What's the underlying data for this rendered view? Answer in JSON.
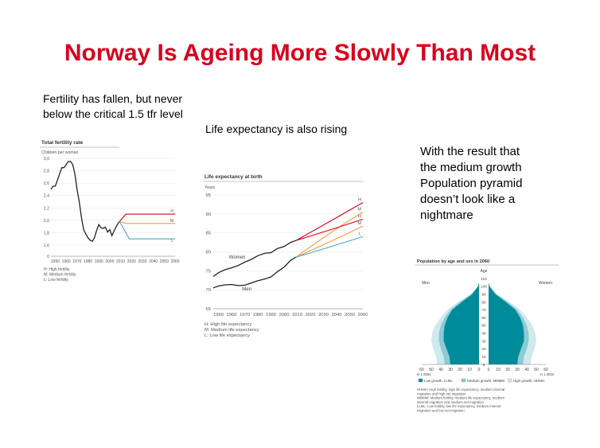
{
  "slide": {
    "title": "Norway Is Ageing More Slowly Than Most",
    "caption_fertility_1": "Fertility has fallen, but never",
    "caption_fertility_2": "below the critical 1.5 tfr level",
    "caption_life": "Life expectancy is also rising",
    "caption_result": [
      "With the result that",
      "the medium growth",
      "Population pyramid",
      "doesn’t  look like a",
      "nightmare"
    ]
  },
  "colors": {
    "high": "#d8001c",
    "medium": "#f0a040",
    "low": "#48a8c0",
    "history": "#222222",
    "teal": "#008b9b",
    "teal_mid": "#8ccbd3",
    "teal_light": "#cfe9ec"
  },
  "chart_data": [
    {
      "type": "line",
      "title": "Total fertility rate",
      "ylabel": "Children per woman",
      "ylim": [
        0,
        3.0
      ],
      "y_ticks": [
        "0",
        "1,6",
        "1,8",
        "2,0",
        "2,2",
        "2,4",
        "2,6",
        "2,8",
        "3,0"
      ],
      "x_ticks": [
        "1950",
        "1960",
        "1970",
        "1980",
        "1990",
        "2000",
        "2010",
        "2020",
        "2030",
        "2040",
        "2050",
        "2060"
      ],
      "history": {
        "x": [
          1946,
          1948,
          1950,
          1952,
          1954,
          1956,
          1958,
          1960,
          1962,
          1964,
          1966,
          1968,
          1970,
          1972,
          1974,
          1976,
          1978,
          1980,
          1982,
          1984,
          1986,
          1988,
          1990,
          1992,
          1994,
          1996,
          1998,
          2000,
          2002,
          2004,
          2006,
          2008,
          2009
        ],
        "y": [
          2.5,
          2.55,
          2.55,
          2.65,
          2.75,
          2.85,
          2.85,
          2.9,
          2.95,
          2.95,
          2.9,
          2.75,
          2.5,
          2.3,
          2.05,
          1.85,
          1.78,
          1.72,
          1.68,
          1.66,
          1.72,
          1.84,
          1.93,
          1.88,
          1.87,
          1.89,
          1.81,
          1.85,
          1.75,
          1.83,
          1.9,
          1.96,
          1.98
        ]
      },
      "series": [
        {
          "name": "H",
          "x": [
            2009,
            2015,
            2060
          ],
          "y": [
            1.98,
            2.1,
            2.1
          ]
        },
        {
          "name": "M",
          "x": [
            2009,
            2015,
            2060
          ],
          "y": [
            1.98,
            1.95,
            1.95
          ]
        },
        {
          "name": "L",
          "x": [
            2009,
            2018,
            2060
          ],
          "y": [
            1.98,
            1.7,
            1.7
          ]
        }
      ],
      "notes": [
        "H: High fertility",
        "M: Medium fertility",
        "L: Low fertility"
      ]
    },
    {
      "type": "line",
      "title": "Life expectancy at birth",
      "ylabel": "Years",
      "ylim": [
        65,
        95
      ],
      "y_ticks": [
        "65",
        "70",
        "75",
        "80",
        "85",
        "90",
        "95"
      ],
      "x_ticks": [
        "1950",
        "1960",
        "1970",
        "1980",
        "1990",
        "2000",
        "2010",
        "2020",
        "2030",
        "2040",
        "2050",
        "2060"
      ],
      "women_history": {
        "name": "Women",
        "x": [
          1946,
          1950,
          1955,
          1960,
          1965,
          1970,
          1975,
          1980,
          1985,
          1990,
          1995,
          2000,
          2005,
          2009
        ],
        "y": [
          73.5,
          74.5,
          75.3,
          75.8,
          76.4,
          77.3,
          78.0,
          79.0,
          79.6,
          79.8,
          80.9,
          81.4,
          82.5,
          83.0
        ]
      },
      "men_history": {
        "name": "Men",
        "x": [
          1946,
          1950,
          1955,
          1960,
          1965,
          1970,
          1975,
          1980,
          1985,
          1990,
          1995,
          2000,
          2005,
          2009
        ],
        "y": [
          70.5,
          71.0,
          71.3,
          71.4,
          71.1,
          71.2,
          71.8,
          72.4,
          72.8,
          73.4,
          74.8,
          76.0,
          77.8,
          78.6
        ]
      },
      "series": [
        {
          "name": "H",
          "x": [
            2009,
            2035,
            2060
          ],
          "y": [
            83.0,
            88.5,
            93.0
          ]
        },
        {
          "name": "M",
          "x": [
            2009,
            2035,
            2060
          ],
          "y": [
            78.6,
            85.8,
            90.5
          ]
        },
        {
          "name": "H",
          "x": [
            2009,
            2035,
            2060
          ],
          "y": [
            83.0,
            86.0,
            88.6
          ]
        },
        {
          "name": "M",
          "x": [
            2009,
            2035,
            2060
          ],
          "y": [
            78.6,
            83.0,
            86.8
          ]
        },
        {
          "name": "L",
          "x": [
            2009,
            2035,
            2060
          ],
          "y": [
            78.6,
            81.5,
            84.0
          ]
        }
      ],
      "notes": [
        "H: High life expectancy",
        "M: Medium life expectancy",
        "L: Low life expectancy"
      ]
    },
    {
      "type": "area",
      "title": "Population by age and sex in 2060",
      "age_label": "Age",
      "left_label": "Men",
      "right_label": "Women",
      "age_ticks": [
        "0",
        "10",
        "20",
        "30",
        "40",
        "50",
        "60",
        "70",
        "80",
        "90",
        "100",
        "110"
      ],
      "x_ticks": [
        "60",
        "50",
        "40",
        "30",
        "20",
        "10",
        "0"
      ],
      "x_ticks_right": [
        "0",
        "10",
        "20",
        "30",
        "40",
        "50",
        "60"
      ],
      "x_unit": "in 1 000s",
      "ages": [
        0,
        10,
        20,
        30,
        40,
        50,
        60,
        70,
        80,
        90,
        100,
        105
      ],
      "low_growth": [
        30,
        31,
        34,
        37,
        37,
        36,
        33,
        28,
        18,
        7,
        1,
        0
      ],
      "medium_growth": [
        36,
        37,
        40,
        42,
        42,
        40,
        36,
        30,
        20,
        8,
        1,
        0
      ],
      "high_growth": [
        44,
        45,
        48,
        50,
        49,
        46,
        40,
        33,
        22,
        9,
        1,
        0
      ],
      "legend": [
        "Low growth, LLML",
        "Medium growth, MMMM",
        "High growth, HHMH"
      ],
      "notes": [
        "HHMH: High fertility, high life expectancy, medium internal migration and high net migration",
        "MMMM: Medium fertility, medium life expectancy, medium internal migration and medium net migration",
        "LLML: Low fertility, low life expectancy, medium internal migration and low net migration"
      ]
    }
  ]
}
